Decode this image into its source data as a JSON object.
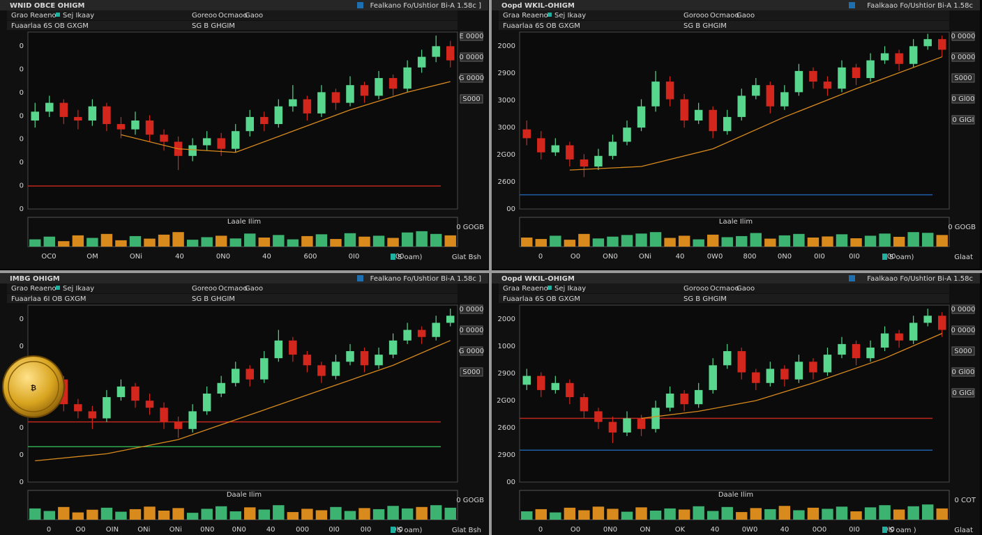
{
  "panels": [
    {
      "title": "WNID OBCE OHIGM",
      "header_right": "Fealkano Fo/Ushtior Bi-A 1.58c ]",
      "tabs_left": [
        "Grao Reaeno",
        "Sej Ikaay"
      ],
      "tabs_center": [
        "Goreoo",
        "Ocmaoo",
        "Gaoo"
      ],
      "subtitle": "Fuaarlaa 6S OB GXGM",
      "subtitle2": "SG B GHGIM",
      "y_labels": [
        "0",
        "0",
        "0",
        "0",
        "0",
        "0",
        "0",
        "0"
      ],
      "price_tags": [
        "E 0000",
        "0 0000",
        "G 0000",
        "S000"
      ],
      "volume_title": "Laale Ilim",
      "volume_label": "0 GOGB",
      "x_labels": [
        "OC0",
        "OM",
        "ONi",
        "40",
        "0N0",
        "40",
        "600",
        "0I0",
        "600"
      ],
      "legend": "S oam)",
      "footer": "Glat Bsh",
      "chart_data": {
        "type": "candlestick",
        "ylim": [
          0,
          100
        ],
        "volume_ylim": [
          0,
          100
        ],
        "up_color": "#58d68d",
        "down_color": "#d3261c",
        "ma_color": "#d98a1c",
        "volume_up": "#3cb371",
        "volume_down": "#d98a1c",
        "candles": [
          [
            50,
            60,
            46,
            55
          ],
          [
            55,
            64,
            52,
            60
          ],
          [
            60,
            62,
            48,
            52
          ],
          [
            52,
            56,
            45,
            50
          ],
          [
            50,
            62,
            47,
            58
          ],
          [
            58,
            60,
            44,
            48
          ],
          [
            48,
            52,
            40,
            45
          ],
          [
            45,
            55,
            42,
            50
          ],
          [
            50,
            53,
            38,
            42
          ],
          [
            42,
            45,
            33,
            38
          ],
          [
            38,
            41,
            22,
            30
          ],
          [
            30,
            40,
            27,
            36
          ],
          [
            36,
            44,
            33,
            40
          ],
          [
            40,
            43,
            30,
            34
          ],
          [
            34,
            48,
            32,
            44
          ],
          [
            44,
            56,
            41,
            52
          ],
          [
            52,
            55,
            44,
            48
          ],
          [
            48,
            62,
            46,
            58
          ],
          [
            58,
            70,
            55,
            62
          ],
          [
            62,
            64,
            50,
            54
          ],
          [
            54,
            70,
            52,
            66
          ],
          [
            66,
            68,
            56,
            60
          ],
          [
            60,
            75,
            58,
            70
          ],
          [
            70,
            72,
            60,
            64
          ],
          [
            64,
            78,
            62,
            74
          ],
          [
            74,
            76,
            64,
            68
          ],
          [
            68,
            84,
            66,
            80
          ],
          [
            80,
            90,
            77,
            86
          ],
          [
            86,
            98,
            83,
            92
          ],
          [
            92,
            95,
            80,
            84
          ]
        ],
        "volume": [
          40,
          55,
          30,
          62,
          48,
          70,
          35,
          58,
          44,
          66,
          80,
          38,
          52,
          60,
          45,
          72,
          50,
          64,
          40,
          58,
          68,
          42,
          74,
          55,
          60,
          48,
          78,
          85,
          70,
          62
        ],
        "ma": {
          "x": [
            6,
            10,
            14,
            18,
            22,
            26,
            29
          ],
          "values": [
            42,
            34,
            32,
            44,
            56,
            66,
            72
          ]
        },
        "levels": [
          {
            "value": 13,
            "color": "#c0281e"
          }
        ]
      }
    },
    {
      "title": "Oopd WKIL-OHIGM",
      "header_right": "Faalkaao Fo/Ushtior Bi-A 1.58c",
      "tabs_left": [
        "Graa Reaeno",
        "Sej Ikaay"
      ],
      "tabs_center": [
        "Gorooo",
        "Ocmaoo",
        "Gaoo"
      ],
      "subtitle": "Fuaarlaa 6S OB GXGM",
      "subtitle2": "SG B GHGIM",
      "y_labels": [
        "2000",
        "2900",
        "3000",
        "3000",
        "2G00",
        "2600",
        "00"
      ],
      "price_tags": [
        "0 0000",
        "0 0000",
        "S000",
        "0 Gl00",
        "0 GIGI"
      ],
      "volume_title": "Laale Ilim",
      "volume_label": "0 GOGB",
      "x_labels": [
        "0",
        "O0",
        "ON0",
        "ONi",
        "40",
        "0W0",
        "800",
        "0N0",
        "0I0",
        "0I0",
        "800"
      ],
      "legend": "S oam)",
      "footer": "Glaat",
      "chart_data": {
        "type": "candlestick",
        "ylim": [
          0,
          100
        ],
        "volume_ylim": [
          0,
          100
        ],
        "up_color": "#58d68d",
        "down_color": "#d3261c",
        "ma_color": "#d98a1c",
        "volume_up": "#3cb371",
        "volume_down": "#d98a1c",
        "candles": [
          [
            45,
            50,
            36,
            40
          ],
          [
            40,
            44,
            28,
            32
          ],
          [
            32,
            40,
            30,
            36
          ],
          [
            36,
            38,
            24,
            28
          ],
          [
            28,
            31,
            18,
            24
          ],
          [
            24,
            34,
            22,
            30
          ],
          [
            30,
            42,
            28,
            38
          ],
          [
            38,
            50,
            36,
            46
          ],
          [
            46,
            62,
            44,
            58
          ],
          [
            58,
            78,
            55,
            72
          ],
          [
            72,
            75,
            58,
            62
          ],
          [
            62,
            65,
            46,
            50
          ],
          [
            50,
            60,
            48,
            56
          ],
          [
            56,
            58,
            40,
            44
          ],
          [
            44,
            56,
            42,
            52
          ],
          [
            52,
            68,
            50,
            64
          ],
          [
            64,
            74,
            62,
            70
          ],
          [
            70,
            72,
            54,
            58
          ],
          [
            58,
            70,
            56,
            66
          ],
          [
            66,
            82,
            64,
            78
          ],
          [
            78,
            80,
            68,
            72
          ],
          [
            72,
            75,
            64,
            68
          ],
          [
            68,
            84,
            66,
            80
          ],
          [
            80,
            82,
            70,
            74
          ],
          [
            74,
            88,
            72,
            84
          ],
          [
            84,
            92,
            82,
            88
          ],
          [
            88,
            90,
            78,
            82
          ],
          [
            82,
            96,
            80,
            92
          ],
          [
            92,
            99,
            90,
            96
          ],
          [
            96,
            98,
            86,
            90
          ]
        ],
        "volume": [
          50,
          42,
          60,
          38,
          70,
          45,
          55,
          64,
          72,
          80,
          48,
          60,
          40,
          66,
          52,
          58,
          75,
          44,
          62,
          70,
          50,
          56,
          68,
          46,
          60,
          72,
          54,
          80,
          76,
          64
        ],
        "ma": {
          "x": [
            3,
            8,
            13,
            18,
            23,
            29
          ],
          "values": [
            22,
            24,
            34,
            52,
            68,
            86
          ]
        },
        "levels": [
          {
            "value": 8,
            "color": "#1f5fa8"
          }
        ]
      }
    },
    {
      "title": "IMBG OHIGM",
      "header_right": "Fealkano Fo/Ushtior Bi-A 1.58c ]",
      "tabs_left": [
        "Grao Reaeno",
        "Sej Ikaay"
      ],
      "tabs_center": [
        "Goreoo",
        "Ocmaoo",
        "Gaoo"
      ],
      "subtitle": "Fuaarlaa 6I OB GXGM",
      "subtitle2": "SG B GHGIM",
      "y_labels": [
        "0",
        "0",
        "0",
        "0",
        "0",
        "0",
        "0"
      ],
      "price_tags": [
        "0 0000",
        "0 0000",
        "G 0000",
        "S000"
      ],
      "volume_title": "Daale Ilim",
      "volume_label": "0 GOGB",
      "x_labels": [
        "0",
        "O0",
        "OIN",
        "ONi",
        "ONi",
        "0N0",
        "0N0",
        "40",
        "000",
        "0I0",
        "0I0",
        "0I0"
      ],
      "legend": "S oam)",
      "footer": "Glat Bsh",
      "coin_symbol": "₿",
      "chart_data": {
        "type": "candlestick",
        "ylim": [
          0,
          100
        ],
        "volume_ylim": [
          0,
          100
        ],
        "up_color": "#58d68d",
        "down_color": "#d3261c",
        "ma_color": "#d98a1c",
        "volume_up": "#3cb371",
        "volume_down": "#d98a1c",
        "candles": [
          [
            45,
            60,
            42,
            50
          ],
          [
            50,
            62,
            48,
            58
          ],
          [
            58,
            60,
            40,
            44
          ],
          [
            44,
            47,
            36,
            40
          ],
          [
            40,
            43,
            30,
            36
          ],
          [
            36,
            52,
            34,
            48
          ],
          [
            48,
            58,
            46,
            54
          ],
          [
            54,
            56,
            42,
            46
          ],
          [
            46,
            50,
            38,
            42
          ],
          [
            42,
            45,
            30,
            34
          ],
          [
            34,
            37,
            25,
            30
          ],
          [
            30,
            44,
            28,
            40
          ],
          [
            40,
            54,
            38,
            50
          ],
          [
            50,
            60,
            48,
            56
          ],
          [
            56,
            68,
            54,
            64
          ],
          [
            64,
            66,
            54,
            58
          ],
          [
            58,
            74,
            56,
            70
          ],
          [
            70,
            86,
            68,
            80
          ],
          [
            80,
            82,
            68,
            72
          ],
          [
            72,
            74,
            62,
            66
          ],
          [
            66,
            68,
            56,
            60
          ],
          [
            60,
            72,
            58,
            68
          ],
          [
            68,
            78,
            66,
            74
          ],
          [
            74,
            76,
            62,
            66
          ],
          [
            66,
            76,
            64,
            72
          ],
          [
            72,
            84,
            70,
            80
          ],
          [
            80,
            90,
            78,
            86
          ],
          [
            86,
            88,
            78,
            82
          ],
          [
            82,
            94,
            80,
            90
          ],
          [
            90,
            98,
            88,
            94
          ]
        ],
        "volume": [
          62,
          48,
          70,
          40,
          55,
          66,
          44,
          58,
          72,
          50,
          64,
          38,
          60,
          74,
          46,
          68,
          56,
          80,
          42,
          60,
          52,
          70,
          48,
          64,
          58,
          76,
          62,
          70,
          80,
          66
        ],
        "ma": {
          "x": [
            0,
            5,
            10,
            15,
            20,
            25,
            29
          ],
          "values": [
            12,
            16,
            24,
            38,
            52,
            66,
            80
          ]
        },
        "levels": [
          {
            "value": 34,
            "color": "#c0281e"
          },
          {
            "value": 20,
            "color": "#2fa84f"
          }
        ]
      }
    },
    {
      "title": "Oopd WKIL-OHIGM",
      "header_right": "Faalkaao Fo/Ushtior Bi-A 1.58c",
      "tabs_left": [
        "Graa Reaeno",
        "Sej Ikaay"
      ],
      "tabs_center": [
        "Gorooo",
        "Ocmaoo",
        "Gaoo"
      ],
      "subtitle": "Fuaarlaa 6S OB GXGM",
      "subtitle2": "SG B GHGIM",
      "y_labels": [
        "2000",
        "1000",
        "2900",
        "2G00",
        "2600",
        "2900",
        "00"
      ],
      "price_tags": [
        "0 0000",
        "0 0000",
        "S000",
        "0 Gl00",
        "0 GIGI"
      ],
      "volume_title": "Daale Ilim",
      "volume_label": "0 COT",
      "x_labels": [
        "0",
        "O0",
        "0N0",
        "ON",
        "OK",
        "40",
        "0W0",
        "40",
        "0O0",
        "0I0",
        "0I0"
      ],
      "legend": "S oam )",
      "footer": "Glaat",
      "chart_data": {
        "type": "candlestick",
        "ylim": [
          0,
          100
        ],
        "volume_ylim": [
          0,
          100
        ],
        "up_color": "#58d68d",
        "down_color": "#d3261c",
        "ma_color": "#d98a1c",
        "volume_up": "#3cb371",
        "volume_down": "#d98a1c",
        "candles": [
          [
            55,
            64,
            52,
            60
          ],
          [
            60,
            62,
            48,
            52
          ],
          [
            52,
            60,
            50,
            56
          ],
          [
            56,
            58,
            44,
            48
          ],
          [
            48,
            50,
            36,
            40
          ],
          [
            40,
            42,
            30,
            34
          ],
          [
            34,
            37,
            22,
            28
          ],
          [
            28,
            40,
            26,
            36
          ],
          [
            36,
            38,
            26,
            30
          ],
          [
            30,
            46,
            28,
            42
          ],
          [
            42,
            54,
            40,
            50
          ],
          [
            50,
            52,
            40,
            44
          ],
          [
            44,
            56,
            42,
            52
          ],
          [
            52,
            70,
            50,
            66
          ],
          [
            66,
            78,
            64,
            74
          ],
          [
            74,
            76,
            58,
            62
          ],
          [
            62,
            64,
            52,
            56
          ],
          [
            56,
            68,
            54,
            64
          ],
          [
            64,
            66,
            54,
            58
          ],
          [
            58,
            72,
            56,
            68
          ],
          [
            68,
            70,
            58,
            62
          ],
          [
            62,
            76,
            60,
            72
          ],
          [
            72,
            82,
            70,
            78
          ],
          [
            78,
            80,
            66,
            70
          ],
          [
            70,
            80,
            68,
            76
          ],
          [
            76,
            88,
            74,
            84
          ],
          [
            84,
            86,
            76,
            80
          ],
          [
            80,
            94,
            78,
            90
          ],
          [
            90,
            98,
            88,
            94
          ],
          [
            94,
            96,
            82,
            86
          ]
        ],
        "volume": [
          46,
          58,
          40,
          66,
          52,
          72,
          60,
          44,
          68,
          50,
          62,
          56,
          74,
          48,
          70,
          42,
          64,
          58,
          76,
          52,
          66,
          60,
          72,
          46,
          68,
          80,
          56,
          74,
          84,
          62
        ],
        "ma": {
          "x": [
            8,
            12,
            16,
            20,
            25,
            29
          ],
          "values": [
            36,
            40,
            46,
            56,
            70,
            84
          ]
        },
        "levels": [
          {
            "value": 36,
            "color": "#c0281e"
          },
          {
            "value": 18,
            "color": "#1f5fa8"
          }
        ]
      }
    }
  ]
}
